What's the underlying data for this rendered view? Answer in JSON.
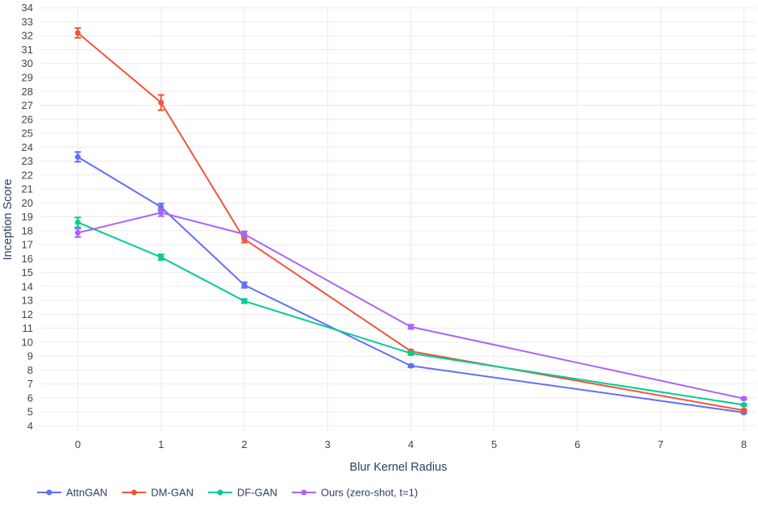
{
  "chart_data": {
    "type": "line",
    "title": "",
    "xlabel": "Blur Kernel Radius",
    "ylabel": "Inception Score",
    "xlim": [
      -0.45,
      8.15
    ],
    "ylim": [
      3.5,
      34.1
    ],
    "x_ticks": [
      0,
      1,
      2,
      3,
      4,
      5,
      6,
      7,
      8
    ],
    "y_ticks": [
      4,
      5,
      6,
      7,
      8,
      9,
      10,
      11,
      12,
      13,
      14,
      15,
      16,
      17,
      18,
      19,
      20,
      21,
      22,
      23,
      24,
      25,
      26,
      27,
      28,
      29,
      30,
      31,
      32,
      33,
      34
    ],
    "grid": true,
    "legend_position": "bottom-left",
    "x": [
      0,
      1,
      2,
      4,
      8
    ],
    "series": [
      {
        "name": "AttnGAN",
        "color": "#636efa",
        "values": [
          23.3,
          19.7,
          14.1,
          8.3,
          4.95
        ],
        "errors": [
          0.35,
          0.25,
          0.2,
          0.1,
          0.08
        ]
      },
      {
        "name": "DM-GAN",
        "color": "#ef553b",
        "values": [
          32.2,
          27.2,
          17.4,
          9.35,
          5.1
        ],
        "errors": [
          0.35,
          0.55,
          0.25,
          0.1,
          0.08
        ]
      },
      {
        "name": "DF-GAN",
        "color": "#00cc96",
        "values": [
          18.6,
          16.1,
          12.95,
          9.2,
          5.5
        ],
        "errors": [
          0.35,
          0.2,
          0.15,
          0.12,
          0.08
        ]
      },
      {
        "name": "Ours (zero-shot, t=1)",
        "color": "#ab63fa",
        "values": [
          17.85,
          19.3,
          17.75,
          11.1,
          5.95
        ],
        "errors": [
          0.3,
          0.25,
          0.2,
          0.15,
          0.08
        ]
      }
    ]
  }
}
